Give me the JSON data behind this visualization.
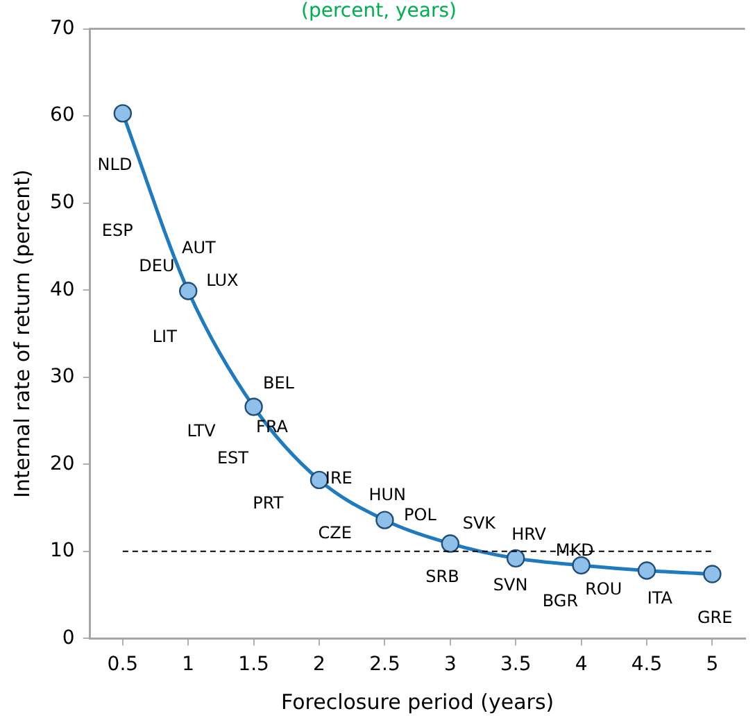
{
  "chart_data": {
    "type": "line",
    "title": "(percent, years)",
    "xlabel": "Foreclosure period (years)",
    "ylabel": "Internal rate of return (percent)",
    "x": [
      0.5,
      1,
      1.5,
      2,
      2.5,
      3,
      3.5,
      4,
      4.5,
      5
    ],
    "series": [
      {
        "color": "#1f7bc0",
        "values": [
          60.3,
          39.9,
          26.6,
          18.2,
          13.6,
          10.9,
          9.2,
          8.4,
          7.8,
          7.4
        ]
      }
    ],
    "xlim": [
      0.25,
      5.25
    ],
    "xticks": [
      0.5,
      1,
      1.5,
      2,
      2.5,
      3,
      3.5,
      4,
      4.5,
      5
    ],
    "ylim": [
      0,
      70
    ],
    "yticks": [
      0,
      10,
      20,
      30,
      40,
      50,
      60,
      70
    ],
    "grid": false,
    "legend": false,
    "marker": "circle",
    "line_style": "solid",
    "ref_lines": [
      {
        "axis": "y",
        "value": 10,
        "color": "#000000",
        "line_style": "dashed"
      }
    ],
    "annotations": [
      "NLD",
      "ESP",
      "AUT",
      "DEU",
      "LUX",
      "LIT",
      "BEL",
      "FRA",
      "LTV",
      "EST",
      "IRE",
      "PRT",
      "HUN",
      "POL",
      "CZE",
      "SVK",
      "HRV",
      "SRB",
      "MKD",
      "SVN",
      "ROU",
      "BGR",
      "ITA",
      "GRE"
    ]
  }
}
